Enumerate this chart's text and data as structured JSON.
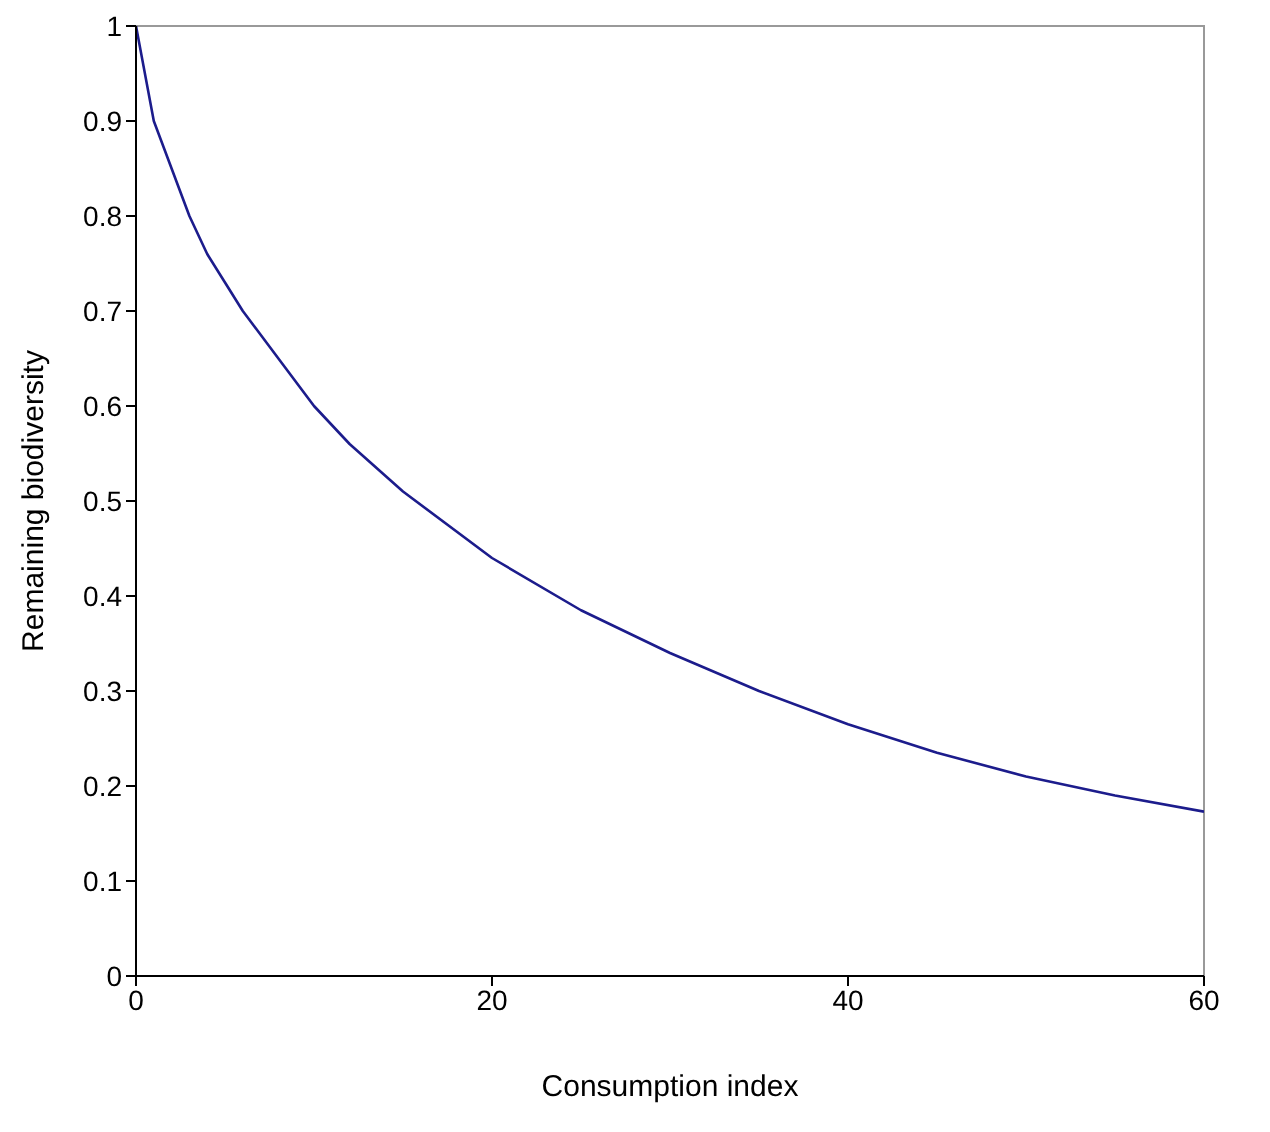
{
  "chart_data": {
    "type": "line",
    "xlabel": "Consumption index",
    "ylabel": "Remaining biodiversity",
    "x": [
      0,
      1,
      2,
      3,
      4,
      5,
      6,
      8,
      10,
      12,
      15,
      20,
      25,
      30,
      35,
      40,
      45,
      50,
      55,
      60
    ],
    "series": [
      {
        "color": "#1c1c8c",
        "values": [
          1,
          0.9,
          0.85,
          0.8,
          0.76,
          0.73,
          0.7,
          0.65,
          0.6,
          0.56,
          0.51,
          0.44,
          0.385,
          0.34,
          0.3,
          0.265,
          0.235,
          0.21,
          0.19,
          0.173
        ]
      }
    ],
    "xlim": [
      0,
      60
    ],
    "xticks": [
      0,
      20,
      40,
      60
    ],
    "ylim": [
      0,
      1
    ],
    "yticks": [
      0,
      0.1,
      0.2,
      0.3,
      0.4,
      0.5,
      0.6,
      0.7,
      0.8,
      0.9,
      1
    ],
    "grid": false,
    "legend": false,
    "marker": "none",
    "line_style": "solid"
  }
}
